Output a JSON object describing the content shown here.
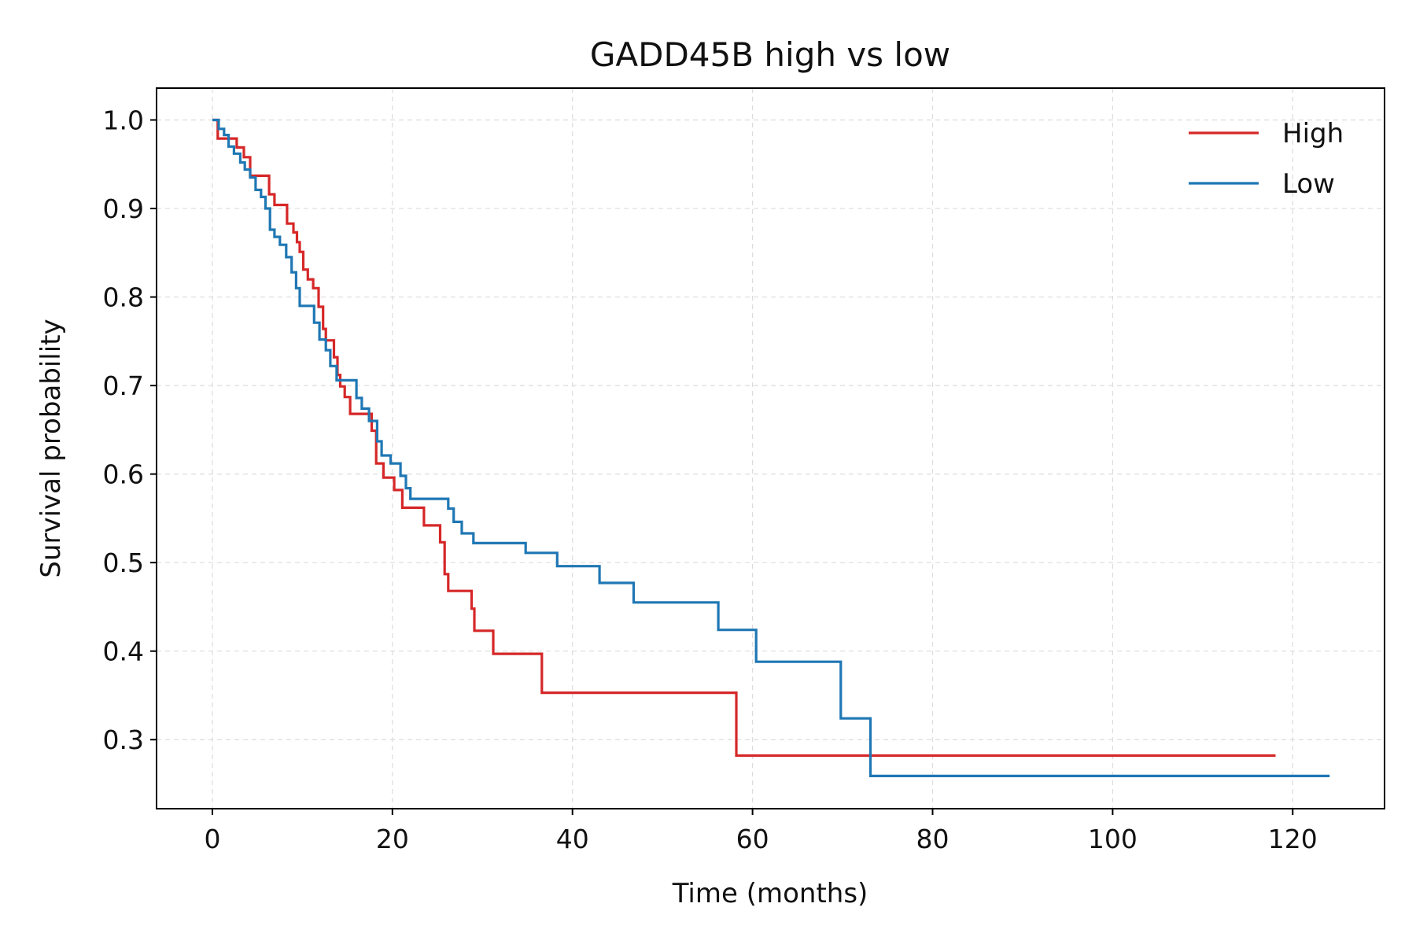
{
  "chart_data": {
    "type": "line",
    "step": true,
    "title": "GADD45B high vs low",
    "xlabel": "Time (months)",
    "ylabel": "Survival probability",
    "xlim": [
      -6.2,
      130.2
    ],
    "ylim": [
      0.222,
      1.036
    ],
    "xticks": [
      0,
      20,
      40,
      60,
      80,
      100,
      120
    ],
    "yticks": [
      0.3,
      0.4,
      0.5,
      0.6,
      0.7,
      0.8,
      0.9,
      1.0
    ],
    "xtick_labels": [
      "0",
      "20",
      "40",
      "60",
      "80",
      "100",
      "120"
    ],
    "ytick_labels": [
      "0.3",
      "0.4",
      "0.5",
      "0.6",
      "0.7",
      "0.8",
      "0.9",
      "1.0"
    ],
    "grid": true,
    "legend_position": "top-right",
    "series": [
      {
        "name": "High",
        "color": "#d62728",
        "x": [
          0,
          0.6,
          2.7,
          3.5,
          4.2,
          6.3,
          6.9,
          8.3,
          9.0,
          9.4,
          9.7,
          10.1,
          10.6,
          11.2,
          11.8,
          12.3,
          12.6,
          13.5,
          13.9,
          14.2,
          14.7,
          15.3,
          16.0,
          17.7,
          18.2,
          19.0,
          20.2,
          21.1,
          22.0,
          23.5,
          25.3,
          25.8,
          26.2,
          28.8,
          29.1,
          31.2,
          36.6,
          58.2,
          118.1
        ],
        "y": [
          1.0,
          0.979,
          0.969,
          0.958,
          0.937,
          0.916,
          0.904,
          0.883,
          0.873,
          0.862,
          0.851,
          0.831,
          0.82,
          0.81,
          0.789,
          0.764,
          0.751,
          0.732,
          0.712,
          0.699,
          0.687,
          0.668,
          0.668,
          0.649,
          0.612,
          0.596,
          0.582,
          0.562,
          0.562,
          0.542,
          0.523,
          0.487,
          0.468,
          0.448,
          0.423,
          0.397,
          0.353,
          0.282,
          0.282
        ]
      },
      {
        "name": "Low",
        "color": "#1f77b4",
        "x": [
          0,
          0.7,
          1.3,
          1.8,
          2.4,
          3.1,
          3.6,
          4.2,
          4.8,
          5.4,
          5.9,
          6.4,
          6.9,
          7.5,
          8.2,
          8.8,
          9.3,
          9.7,
          10.2,
          11.3,
          11.9,
          12.6,
          13.1,
          13.8,
          14.5,
          16.0,
          16.6,
          17.4,
          18.3,
          18.8,
          19.8,
          20.9,
          21.5,
          22.0,
          22.4,
          26.2,
          26.8,
          27.7,
          29.0,
          34.8,
          38.3,
          43.0,
          46.8,
          56.2,
          60.4,
          69.8,
          73.1,
          124.1
        ],
        "y": [
          1.0,
          0.99,
          0.983,
          0.97,
          0.962,
          0.952,
          0.944,
          0.935,
          0.921,
          0.913,
          0.9,
          0.876,
          0.868,
          0.859,
          0.845,
          0.828,
          0.81,
          0.79,
          0.79,
          0.771,
          0.752,
          0.74,
          0.722,
          0.706,
          0.706,
          0.686,
          0.674,
          0.66,
          0.637,
          0.621,
          0.612,
          0.598,
          0.584,
          0.572,
          0.572,
          0.561,
          0.546,
          0.533,
          0.522,
          0.511,
          0.496,
          0.477,
          0.455,
          0.424,
          0.388,
          0.324,
          0.259,
          0.259
        ]
      }
    ]
  }
}
